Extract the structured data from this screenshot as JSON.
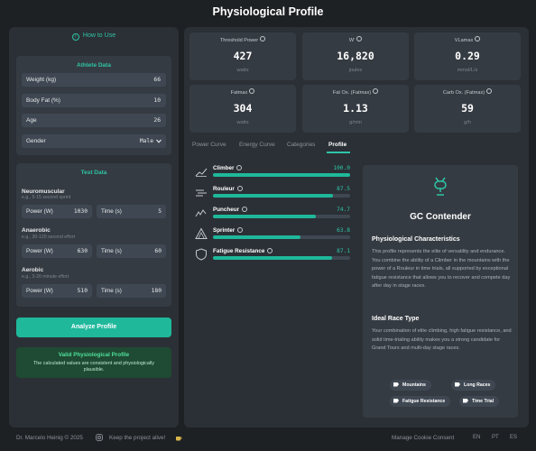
{
  "app": {
    "title": "Physiological Profile"
  },
  "left": {
    "how_to": "How to Use",
    "athlete_data": {
      "title": "Athlete Data",
      "fields": [
        {
          "label": "Weight (kg)",
          "value": "66"
        },
        {
          "label": "Body Fat (%)",
          "value": "10"
        },
        {
          "label": "Age",
          "value": "26"
        },
        {
          "label": "Gender",
          "value": "Male"
        }
      ]
    },
    "test_data": {
      "title": "Test Data",
      "groups": [
        {
          "name": "Neuromuscular",
          "hint": "e.g., 5-15 second sprint",
          "power_label": "Power (W)",
          "power": "1030",
          "time_label": "Time (s)",
          "time": "5"
        },
        {
          "name": "Anaerobic",
          "hint": "e.g., 30-120 second effort",
          "power_label": "Power (W)",
          "power": "630",
          "time_label": "Time (s)",
          "time": "60"
        },
        {
          "name": "Aerobic",
          "hint": "e.g., 3-20 minute effort",
          "power_label": "Power (W)",
          "power": "510",
          "time_label": "Time (s)",
          "time": "180"
        }
      ]
    },
    "analyze_label": "Analyze Profile",
    "valid": {
      "title": "Valid Physiological Profile",
      "text": "The calculated values are consistent and physiologically plausible."
    }
  },
  "metrics": [
    {
      "label": "Threshold Power",
      "value": "427",
      "unit": "watts"
    },
    {
      "label": "W'",
      "value": "16,820",
      "unit": "joules"
    },
    {
      "label": "VLamax",
      "value": "0.29",
      "unit": "mmol/L/s"
    },
    {
      "label": "Fatmax",
      "value": "304",
      "unit": "watts"
    },
    {
      "label": "Fat Ox. (Fatmax)",
      "value": "1.13",
      "unit": "g/min"
    },
    {
      "label": "Carb Ox. (Fatmax)",
      "value": "59",
      "unit": "g/h"
    }
  ],
  "tabs": [
    "Power Curve",
    "Energy Curve",
    "Categories",
    "Profile"
  ],
  "active_tab": "Profile",
  "rider_types": [
    {
      "name": "Climber",
      "score": "100.0",
      "fraction": 1.0,
      "icon": "climber-icon"
    },
    {
      "name": "Rouleur",
      "score": "87.5",
      "fraction": 0.875,
      "icon": "rouleur-icon"
    },
    {
      "name": "Puncheur",
      "score": "74.7",
      "fraction": 0.747,
      "icon": "puncheur-icon"
    },
    {
      "name": "Sprinter",
      "score": "63.8",
      "fraction": 0.638,
      "icon": "sprinter-icon"
    },
    {
      "name": "Fatigue Resistance",
      "score": "87.1",
      "fraction": 0.871,
      "icon": "shield-icon"
    }
  ],
  "profile": {
    "title": "GC Contender",
    "char_heading": "Physiological Characteristics",
    "char_text": "This profile represents the elite of versatility and endurance. You combine the ability of a Climber in the mountains with the power of a Rouleur in time trials, all supported by exceptional fatigue resistance that allows you to recover and compete day after day in stage races.",
    "race_heading": "Ideal Race Type",
    "race_text": "Your combination of elite climbing, high fatigue resistance, and solid time-trialing ability makes you a strong candidate for Grand Tours and multi-day stage races.",
    "tags": [
      "Mountains",
      "Long Races",
      "Fatigue Resistance",
      "Time Trial"
    ]
  },
  "footer": {
    "copyright": "Dr. Marcelo Heinig © 2025",
    "keep_alive": "Keep the project alive!",
    "cookie": "Manage Cookie Consent",
    "languages": [
      "EN",
      "PT",
      "ES"
    ]
  },
  "colors": {
    "accent": "#1fb89b",
    "accent_text": "#2ec4a6",
    "panel": "#2b3036",
    "card": "#353b42",
    "field": "#3f4852",
    "valid_bg": "#1f4a33"
  }
}
